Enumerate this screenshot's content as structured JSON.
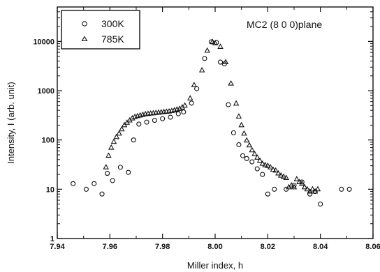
{
  "chart_data": {
    "type": "scatter",
    "title": "",
    "annotation": "MC2 (8 0 0)plane",
    "xlabel": "Miller index, h",
    "ylabel": "Intensity, I (arb. unit)",
    "xlim": [
      7.94,
      8.06
    ],
    "ylim": [
      1,
      50000
    ],
    "yscale": "log",
    "x_ticks": [
      "7.94",
      "7.96",
      "7.98",
      "8.00",
      "8.02",
      "8.04",
      "8.06"
    ],
    "y_ticks": [
      "1",
      "10",
      "100",
      "1000",
      "10000"
    ],
    "grid": false,
    "legend_position": "top-left",
    "series": [
      {
        "name": "300K",
        "marker": "circle",
        "points": [
          [
            7.946,
            13
          ],
          [
            7.951,
            10
          ],
          [
            7.954,
            13
          ],
          [
            7.957,
            8
          ],
          [
            7.959,
            21
          ],
          [
            7.961,
            15
          ],
          [
            7.964,
            28
          ],
          [
            7.967,
            22
          ],
          [
            7.969,
            100
          ],
          [
            7.971,
            210
          ],
          [
            7.974,
            230
          ],
          [
            7.977,
            250
          ],
          [
            7.98,
            270
          ],
          [
            7.983,
            290
          ],
          [
            7.986,
            340
          ],
          [
            7.988,
            370
          ],
          [
            7.991,
            560
          ],
          [
            7.993,
            1100
          ],
          [
            7.996,
            4500
          ],
          [
            7.9985,
            9800
          ],
          [
            8.0005,
            9500
          ],
          [
            8.002,
            3800
          ],
          [
            8.0035,
            3500
          ],
          [
            8.005,
            520
          ],
          [
            8.007,
            140
          ],
          [
            8.009,
            80
          ],
          [
            8.0105,
            48
          ],
          [
            8.012,
            42
          ],
          [
            8.014,
            36
          ],
          [
            8.016,
            26
          ],
          [
            8.018,
            20
          ],
          [
            8.02,
            8
          ],
          [
            8.0225,
            10
          ],
          [
            8.027,
            10
          ],
          [
            8.03,
            12
          ],
          [
            8.033,
            14
          ],
          [
            8.036,
            8
          ],
          [
            8.038,
            9
          ],
          [
            8.04,
            5
          ],
          [
            8.048,
            10
          ],
          [
            8.051,
            10
          ]
        ]
      },
      {
        "name": "785K",
        "marker": "triangle",
        "points": [
          [
            7.9585,
            28
          ],
          [
            7.9595,
            48
          ],
          [
            7.9605,
            70
          ],
          [
            7.9615,
            92
          ],
          [
            7.9625,
            115
          ],
          [
            7.9635,
            135
          ],
          [
            7.9645,
            165
          ],
          [
            7.9655,
            200
          ],
          [
            7.9665,
            225
          ],
          [
            7.9675,
            250
          ],
          [
            7.9685,
            275
          ],
          [
            7.9695,
            295
          ],
          [
            7.9705,
            305
          ],
          [
            7.9715,
            315
          ],
          [
            7.9725,
            325
          ],
          [
            7.9735,
            335
          ],
          [
            7.9745,
            340
          ],
          [
            7.9755,
            345
          ],
          [
            7.9765,
            350
          ],
          [
            7.9775,
            355
          ],
          [
            7.9785,
            360
          ],
          [
            7.9795,
            365
          ],
          [
            7.9805,
            370
          ],
          [
            7.9815,
            375
          ],
          [
            7.9825,
            380
          ],
          [
            7.9835,
            390
          ],
          [
            7.9845,
            400
          ],
          [
            7.9855,
            415
          ],
          [
            7.9865,
            430
          ],
          [
            7.9875,
            460
          ],
          [
            7.9885,
            500
          ],
          [
            7.9905,
            700
          ],
          [
            7.992,
            1300
          ],
          [
            7.995,
            2600
          ],
          [
            7.997,
            6500
          ],
          [
            7.999,
            9800
          ],
          [
            8.0,
            9200
          ],
          [
            8.002,
            7800
          ],
          [
            8.004,
            3800
          ],
          [
            8.006,
            1400
          ],
          [
            8.008,
            550
          ],
          [
            8.009,
            300
          ],
          [
            8.01,
            200
          ],
          [
            8.011,
            135
          ],
          [
            8.012,
            98
          ],
          [
            8.013,
            78
          ],
          [
            8.014,
            62
          ],
          [
            8.015,
            52
          ],
          [
            8.016,
            44
          ],
          [
            8.017,
            38
          ],
          [
            8.018,
            33
          ],
          [
            8.019,
            31
          ],
          [
            8.02,
            30
          ],
          [
            8.021,
            28
          ],
          [
            8.022,
            25
          ],
          [
            8.023,
            24
          ],
          [
            8.024,
            21
          ],
          [
            8.025,
            19
          ],
          [
            8.026,
            18
          ],
          [
            8.027,
            17
          ],
          [
            8.028,
            11
          ],
          [
            8.029,
            12
          ],
          [
            8.03,
            11
          ],
          [
            8.031,
            16
          ],
          [
            8.032,
            14
          ],
          [
            8.033,
            13
          ],
          [
            8.034,
            11
          ],
          [
            8.035,
            10
          ],
          [
            8.036,
            9
          ],
          [
            8.037,
            10
          ],
          [
            8.038,
            9
          ],
          [
            8.039,
            10
          ]
        ]
      }
    ]
  }
}
